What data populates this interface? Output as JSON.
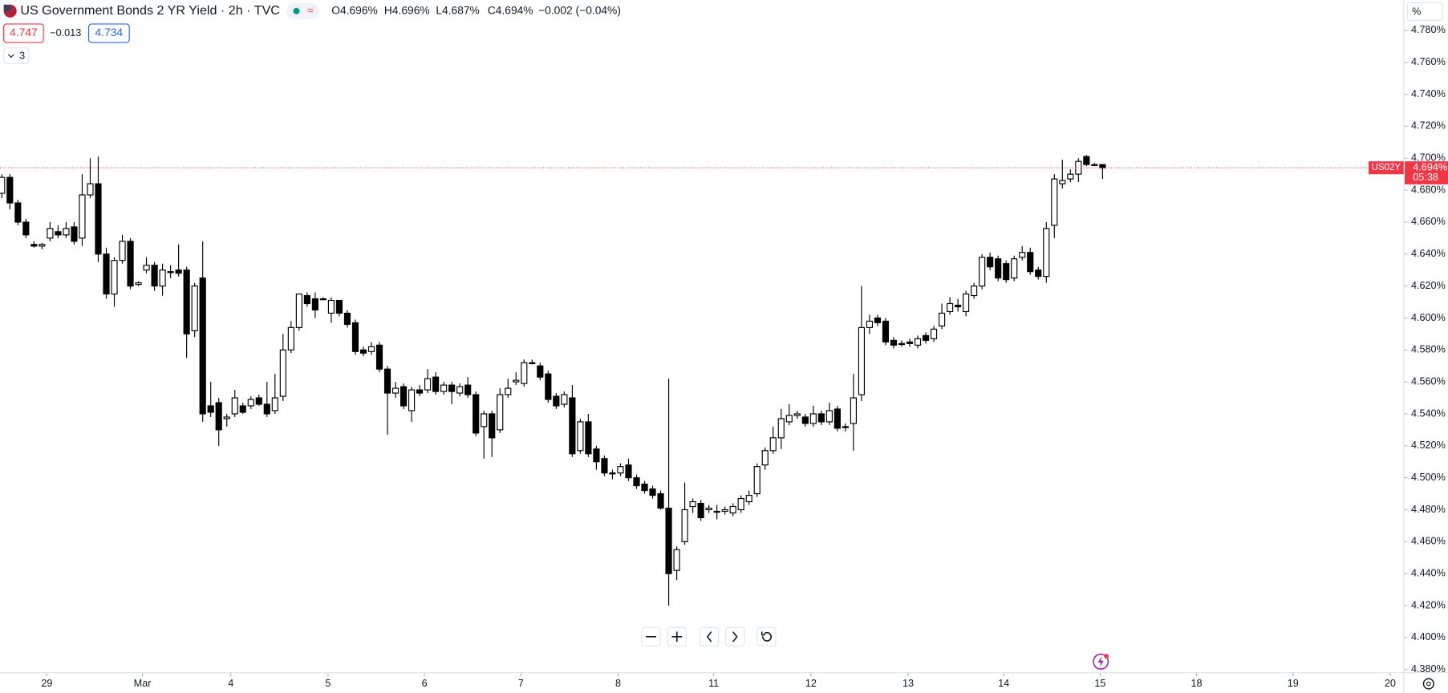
{
  "header": {
    "title": "US Government Bonds 2 YR Yield · 2h · TVC",
    "ohlc": [
      "O4.696%",
      "H4.696%",
      "L4.687%",
      "C4.694%",
      "−0.002 (−0.04%)"
    ],
    "sell": "4.747",
    "spread": "−0.013",
    "buy": "4.734",
    "indicators": "3"
  },
  "chart_data": {
    "type": "candlestick",
    "symbol": "US02Y",
    "countdown": "05:38",
    "axis_unit": "%",
    "last_price": {
      "value": 4.694,
      "label": "4.694%"
    },
    "up_color": "#ffffff",
    "down_color": "#000000",
    "line_color": "#f23645",
    "xlim": [
      -0.23,
      174.48
    ],
    "ylim": [
      4.378,
      4.799
    ],
    "xticks": [
      {
        "value": 5.6,
        "label": "29"
      },
      {
        "value": 17.5,
        "label": "Mar"
      },
      {
        "value": 28.5,
        "label": "4"
      },
      {
        "value": 40.6,
        "label": "5"
      },
      {
        "value": 52.6,
        "label": "6"
      },
      {
        "value": 64.6,
        "label": "7"
      },
      {
        "value": 76.7,
        "label": "8"
      },
      {
        "value": 88.6,
        "label": "11"
      },
      {
        "value": 100.7,
        "label": "12"
      },
      {
        "value": 112.8,
        "label": "13"
      },
      {
        "value": 124.7,
        "label": "14"
      },
      {
        "value": 136.7,
        "label": "15"
      },
      {
        "value": 148.7,
        "label": "18"
      },
      {
        "value": 160.7,
        "label": "19"
      },
      {
        "value": 172.8,
        "label": "20"
      }
    ],
    "yticks": [
      {
        "value": 4.78,
        "label": "4.780%"
      },
      {
        "value": 4.76,
        "label": "4.760%"
      },
      {
        "value": 4.74,
        "label": "4.740%"
      },
      {
        "value": 4.72,
        "label": "4.720%"
      },
      {
        "value": 4.7,
        "label": "4.700%"
      },
      {
        "value": 4.68,
        "label": "4.680%"
      },
      {
        "value": 4.66,
        "label": "4.660%"
      },
      {
        "value": 4.64,
        "label": "4.640%"
      },
      {
        "value": 4.62,
        "label": "4.620%"
      },
      {
        "value": 4.6,
        "label": "4.600%"
      },
      {
        "value": 4.58,
        "label": "4.580%"
      },
      {
        "value": 4.56,
        "label": "4.560%"
      },
      {
        "value": 4.54,
        "label": "4.540%"
      },
      {
        "value": 4.52,
        "label": "4.520%"
      },
      {
        "value": 4.5,
        "label": "4.500%"
      },
      {
        "value": 4.48,
        "label": "4.480%"
      },
      {
        "value": 4.46,
        "label": "4.460%"
      },
      {
        "value": 4.44,
        "label": "4.440%"
      },
      {
        "value": 4.42,
        "label": "4.420%"
      },
      {
        "value": 4.4,
        "label": "4.400%"
      },
      {
        "value": 4.38,
        "label": "4.380%"
      }
    ],
    "ohlc": [
      [
        4.678,
        4.69,
        4.675,
        4.688
      ],
      [
        4.688,
        4.69,
        4.668,
        4.672
      ],
      [
        4.672,
        4.674,
        4.658,
        4.66
      ],
      [
        4.66,
        4.662,
        4.65,
        4.652
      ],
      [
        4.646,
        4.648,
        4.644,
        4.645
      ],
      [
        4.645,
        4.647,
        4.643,
        4.646
      ],
      [
        4.65,
        4.66,
        4.648,
        4.656
      ],
      [
        4.654,
        4.658,
        4.65,
        4.652
      ],
      [
        4.652,
        4.66,
        4.65,
        4.656
      ],
      [
        4.657,
        4.66,
        4.646,
        4.648
      ],
      [
        4.65,
        4.69,
        4.645,
        4.677
      ],
      [
        4.677,
        4.7,
        4.675,
        4.684
      ],
      [
        4.684,
        4.701,
        4.635,
        4.64
      ],
      [
        4.64,
        4.644,
        4.612,
        4.615
      ],
      [
        4.615,
        4.638,
        4.607,
        4.636
      ],
      [
        4.636,
        4.652,
        4.634,
        4.648
      ],
      [
        4.648,
        4.65,
        4.618,
        4.62
      ],
      [
        4.621,
        4.623,
        4.62,
        4.622
      ],
      [
        4.63,
        4.638,
        4.628,
        4.633
      ],
      [
        4.633,
        4.635,
        4.617,
        4.62
      ],
      [
        4.62,
        4.634,
        4.614,
        4.63
      ],
      [
        4.629,
        4.633,
        4.625,
        4.629
      ],
      [
        4.63,
        4.646,
        4.626,
        4.628
      ],
      [
        4.63,
        4.632,
        4.575,
        4.59
      ],
      [
        4.592,
        4.622,
        4.588,
        4.62
      ],
      [
        4.625,
        4.648,
        4.535,
        4.54
      ],
      [
        4.545,
        4.56,
        4.538,
        4.541
      ],
      [
        4.547,
        4.55,
        4.52,
        4.53
      ],
      [
        4.537,
        4.54,
        4.532,
        4.538
      ],
      [
        4.54,
        4.555,
        4.538,
        4.55
      ],
      [
        4.545,
        4.547,
        4.54,
        4.541
      ],
      [
        4.545,
        4.551,
        4.543,
        4.549
      ],
      [
        4.55,
        4.552,
        4.545,
        4.546
      ],
      [
        4.546,
        4.56,
        4.538,
        4.54
      ],
      [
        4.542,
        4.565,
        4.54,
        4.55
      ],
      [
        4.551,
        4.59,
        4.548,
        4.58
      ],
      [
        4.58,
        4.598,
        4.578,
        4.594
      ],
      [
        4.594,
        4.615,
        4.592,
        4.615
      ],
      [
        4.614,
        4.616,
        4.607,
        4.609
      ],
      [
        4.612,
        4.616,
        4.6,
        4.605
      ],
      [
        4.612,
        4.613,
        4.611,
        4.612
      ],
      [
        4.603,
        4.613,
        4.597,
        4.611
      ],
      [
        4.611,
        4.611,
        4.601,
        4.603
      ],
      [
        4.603,
        4.605,
        4.594,
        4.596
      ],
      [
        4.597,
        4.599,
        4.577,
        4.579
      ],
      [
        4.58,
        4.582,
        4.576,
        4.578
      ],
      [
        4.579,
        4.585,
        4.577,
        4.582
      ],
      [
        4.583,
        4.585,
        4.566,
        4.568
      ],
      [
        4.568,
        4.57,
        4.527,
        4.553
      ],
      [
        4.553,
        4.56,
        4.55,
        4.556
      ],
      [
        4.557,
        4.559,
        4.543,
        4.545
      ],
      [
        4.542,
        4.557,
        4.535,
        4.555
      ],
      [
        4.555,
        4.558,
        4.551,
        4.553
      ],
      [
        4.555,
        4.568,
        4.553,
        4.562
      ],
      [
        4.563,
        4.566,
        4.552,
        4.554
      ],
      [
        4.554,
        4.56,
        4.552,
        4.558
      ],
      [
        4.558,
        4.56,
        4.546,
        4.554
      ],
      [
        4.553,
        4.559,
        4.551,
        4.557
      ],
      [
        4.558,
        4.563,
        4.55,
        4.552
      ],
      [
        4.552,
        4.554,
        4.526,
        4.528
      ],
      [
        4.532,
        4.542,
        4.512,
        4.54
      ],
      [
        4.54,
        4.542,
        4.513,
        4.525
      ],
      [
        4.53,
        4.556,
        4.528,
        4.552
      ],
      [
        4.552,
        4.562,
        4.55,
        4.556
      ],
      [
        4.56,
        4.566,
        4.558,
        4.561
      ],
      [
        4.559,
        4.574,
        4.557,
        4.572
      ],
      [
        4.572,
        4.574,
        4.571,
        4.572
      ],
      [
        4.57,
        4.572,
        4.561,
        4.563
      ],
      [
        4.565,
        4.567,
        4.547,
        4.549
      ],
      [
        4.551,
        4.553,
        4.543,
        4.545
      ],
      [
        4.546,
        4.554,
        4.544,
        4.552
      ],
      [
        4.55,
        4.558,
        4.513,
        4.515
      ],
      [
        4.517,
        4.537,
        4.515,
        4.535
      ],
      [
        4.535,
        4.54,
        4.513,
        4.515
      ],
      [
        4.518,
        4.52,
        4.505,
        4.51
      ],
      [
        4.512,
        4.514,
        4.501,
        4.503
      ],
      [
        4.503,
        4.505,
        4.499,
        4.503
      ],
      [
        4.503,
        4.509,
        4.501,
        4.507
      ],
      [
        4.508,
        4.512,
        4.498,
        4.5
      ],
      [
        4.5,
        4.502,
        4.493,
        4.495
      ],
      [
        4.496,
        4.498,
        4.49,
        4.492
      ],
      [
        4.493,
        4.495,
        4.487,
        4.489
      ],
      [
        4.49,
        4.492,
        4.48,
        4.481
      ],
      [
        4.481,
        4.562,
        4.42,
        4.44
      ],
      [
        4.442,
        4.457,
        4.436,
        4.455
      ],
      [
        4.46,
        4.497,
        4.458,
        4.48
      ],
      [
        4.482,
        4.487,
        4.478,
        4.485
      ],
      [
        4.484,
        4.486,
        4.473,
        4.475
      ],
      [
        4.48,
        4.483,
        4.478,
        4.481
      ],
      [
        4.479,
        4.483,
        4.474,
        4.479
      ],
      [
        4.479,
        4.482,
        4.477,
        4.48
      ],
      [
        4.478,
        4.484,
        4.476,
        4.482
      ],
      [
        4.48,
        4.489,
        4.478,
        4.487
      ],
      [
        4.485,
        4.492,
        4.483,
        4.489
      ],
      [
        4.49,
        4.509,
        4.488,
        4.507
      ],
      [
        4.508,
        4.519,
        4.505,
        4.517
      ],
      [
        4.517,
        4.532,
        4.515,
        4.525
      ],
      [
        4.525,
        4.543,
        4.518,
        4.537
      ],
      [
        4.535,
        4.546,
        4.533,
        4.539
      ],
      [
        4.539,
        4.542,
        4.537,
        4.54
      ],
      [
        4.538,
        4.54,
        4.532,
        4.534
      ],
      [
        4.534,
        4.545,
        4.532,
        4.54
      ],
      [
        4.54,
        4.542,
        4.533,
        4.535
      ],
      [
        4.535,
        4.547,
        4.533,
        4.542
      ],
      [
        4.543,
        4.545,
        4.529,
        4.531
      ],
      [
        4.532,
        4.534,
        4.529,
        4.532
      ],
      [
        4.534,
        4.565,
        4.517,
        4.55
      ],
      [
        4.552,
        4.62,
        4.548,
        4.594
      ],
      [
        4.594,
        4.602,
        4.59,
        4.598
      ],
      [
        4.6,
        4.602,
        4.595,
        4.597
      ],
      [
        4.598,
        4.6,
        4.583,
        4.585
      ],
      [
        4.586,
        4.588,
        4.581,
        4.583
      ],
      [
        4.584,
        4.586,
        4.582,
        4.584
      ],
      [
        4.585,
        4.587,
        4.582,
        4.584
      ],
      [
        4.583,
        4.589,
        4.581,
        4.587
      ],
      [
        4.589,
        4.591,
        4.584,
        4.586
      ],
      [
        4.587,
        4.595,
        4.585,
        4.593
      ],
      [
        4.595,
        4.609,
        4.593,
        4.603
      ],
      [
        4.604,
        4.613,
        4.602,
        4.609
      ],
      [
        4.608,
        4.612,
        4.604,
        4.607
      ],
      [
        4.604,
        4.617,
        4.601,
        4.615
      ],
      [
        4.614,
        4.622,
        4.612,
        4.62
      ],
      [
        4.62,
        4.64,
        4.618,
        4.638
      ],
      [
        4.638,
        4.641,
        4.63,
        4.632
      ],
      [
        4.637,
        4.639,
        4.623,
        4.625
      ],
      [
        4.634,
        4.636,
        4.622,
        4.624
      ],
      [
        4.625,
        4.639,
        4.623,
        4.637
      ],
      [
        4.638,
        4.645,
        4.636,
        4.641
      ],
      [
        4.641,
        4.644,
        4.627,
        4.629
      ],
      [
        4.63,
        4.632,
        4.624,
        4.626
      ],
      [
        4.626,
        4.66,
        4.622,
        4.656
      ],
      [
        4.658,
        4.69,
        4.65,
        4.687
      ],
      [
        4.684,
        4.699,
        4.681,
        4.686
      ],
      [
        4.687,
        4.693,
        4.685,
        4.69
      ],
      [
        4.69,
        4.7,
        4.685,
        4.698
      ],
      [
        4.701,
        4.702,
        4.695,
        4.696
      ],
      [
        4.696,
        4.697,
        4.695,
        4.696
      ],
      [
        4.696,
        4.696,
        4.687,
        4.694
      ]
    ]
  }
}
